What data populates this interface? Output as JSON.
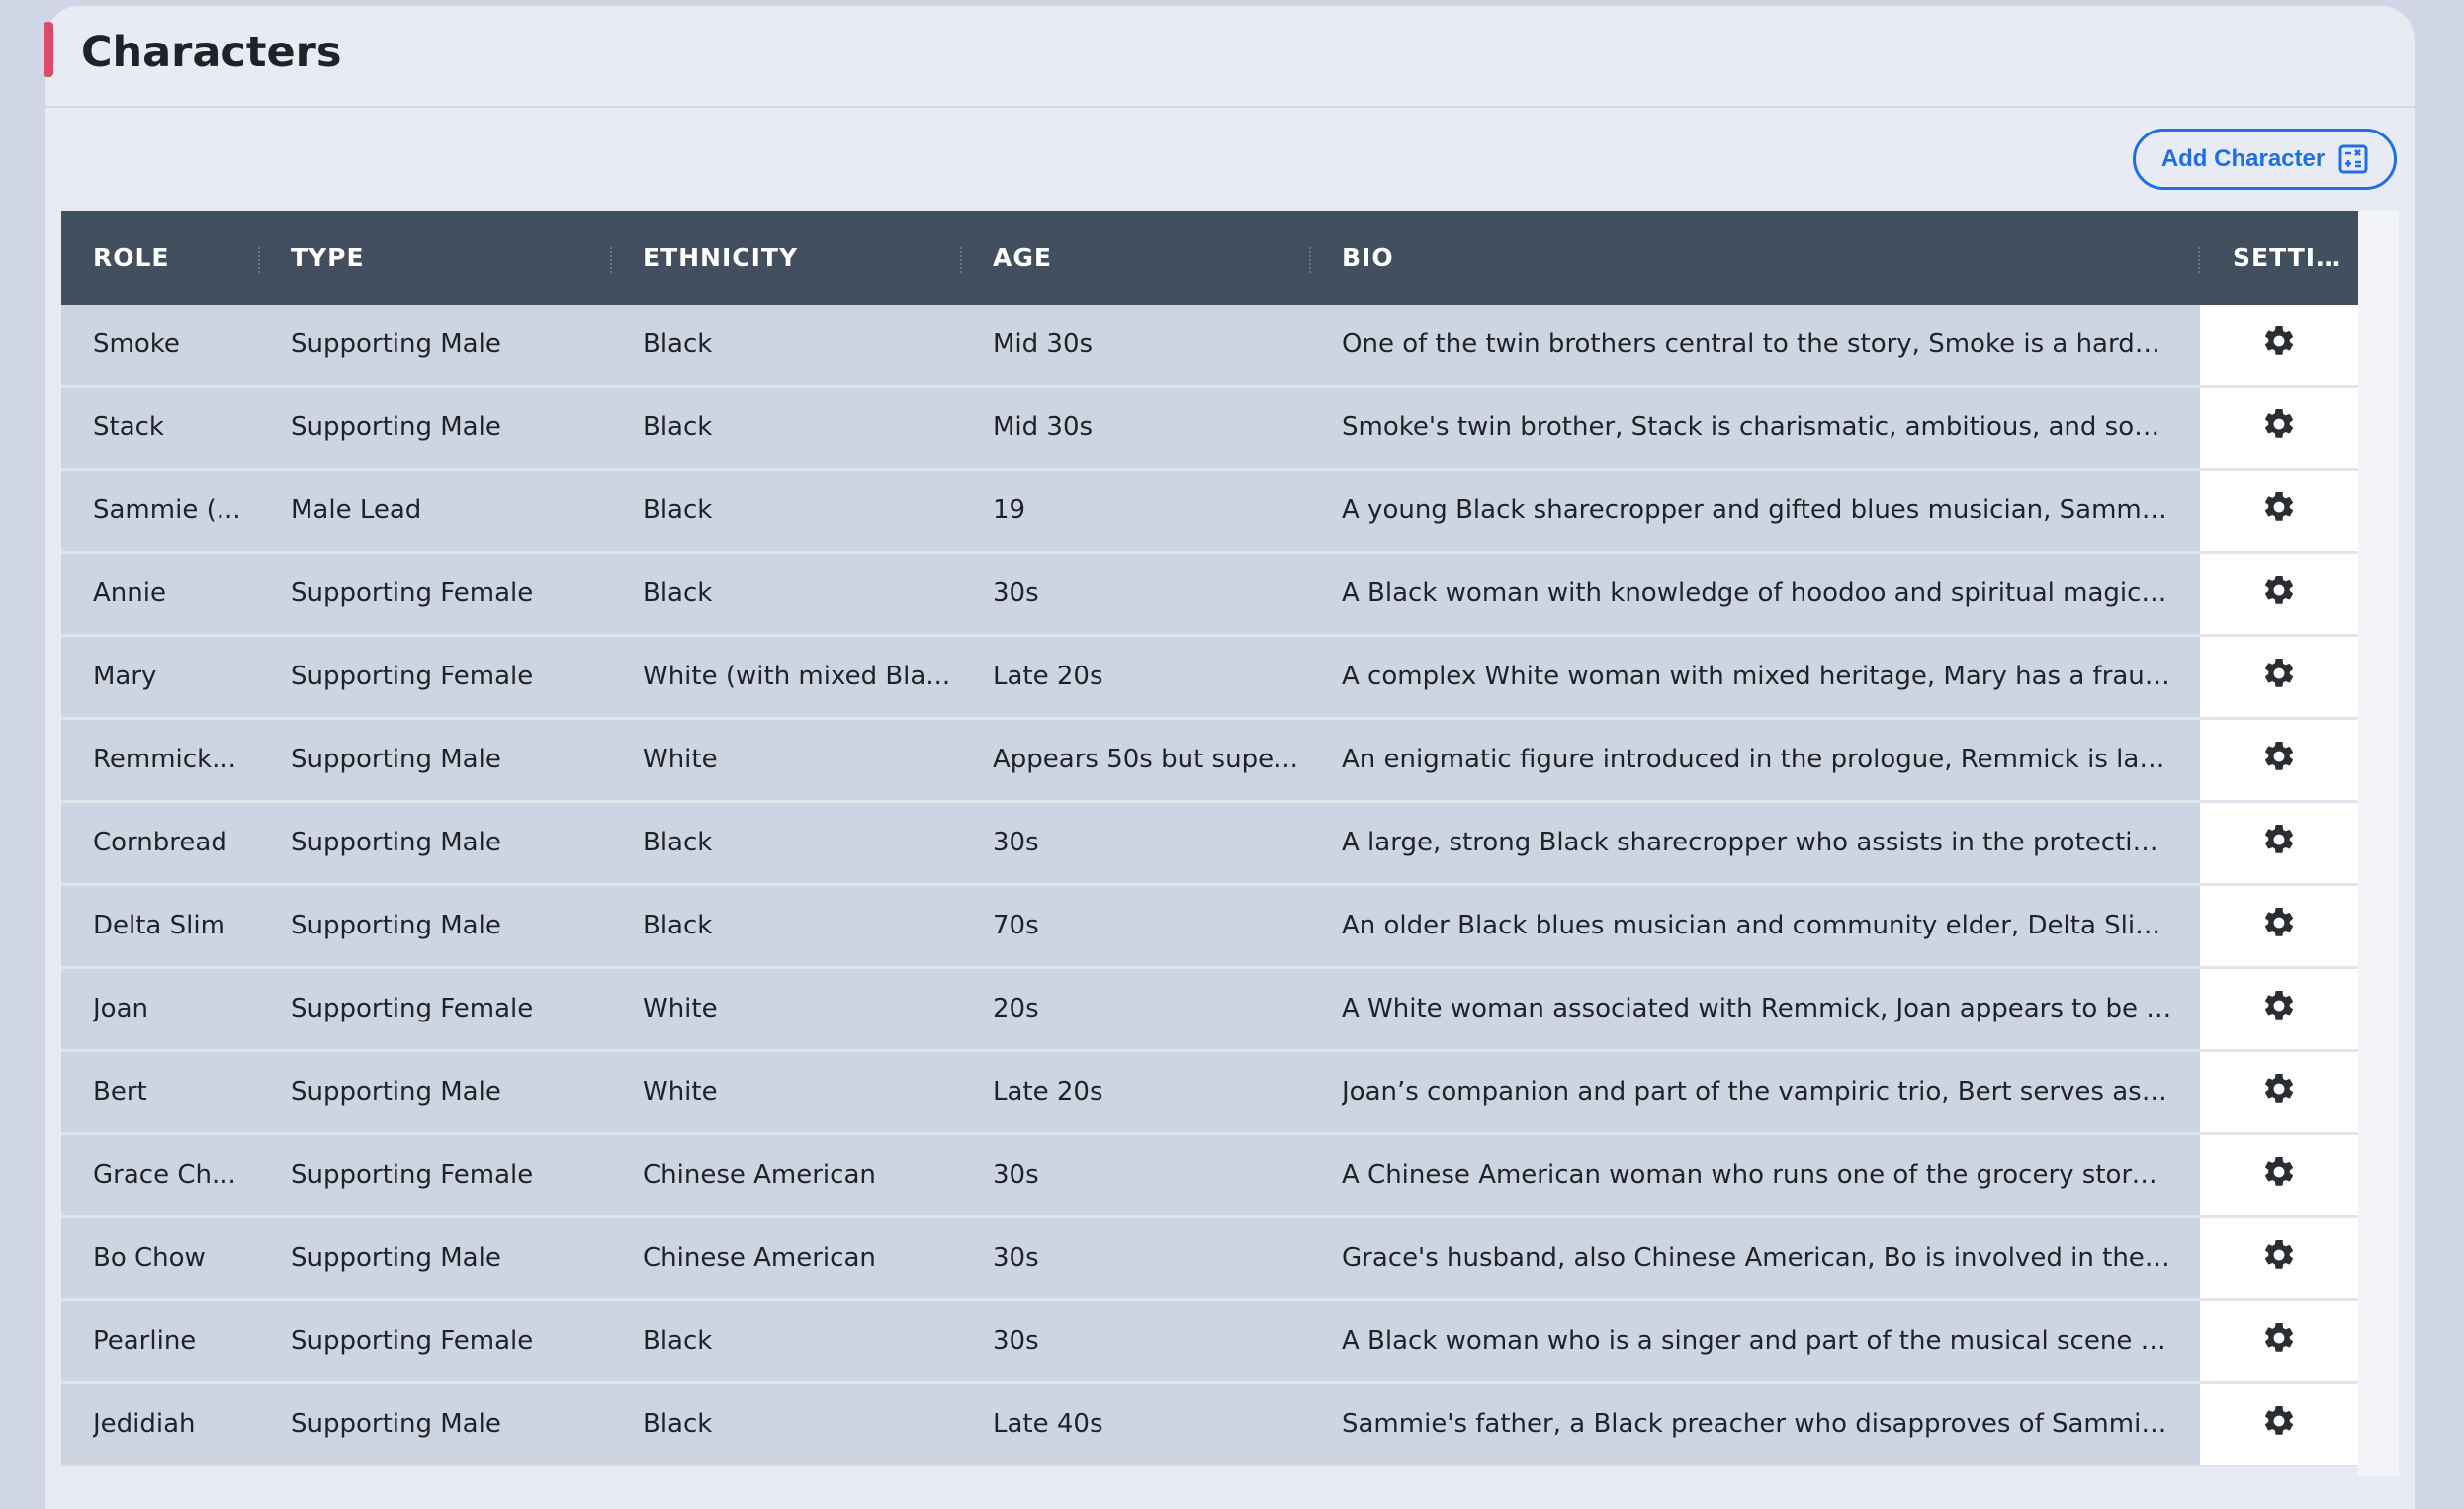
{
  "page": {
    "title": "Characters",
    "add_button": "Add Character",
    "add_icon": "calculator-icon",
    "accent_color": "#dc4a68",
    "button_color": "#1f6fe0"
  },
  "columns": [
    "ROLE",
    "TYPE",
    "ETHNICITY",
    "AGE",
    "BIO",
    "SETTI…"
  ],
  "rows": [
    {
      "role": "Smoke",
      "type": "Supporting Male",
      "ethnicity": "Black",
      "age": "Mid 30s",
      "bio": "One of the twin brothers central to the story, Smoke is a hardened,..."
    },
    {
      "role": "Stack",
      "type": "Supporting Male",
      "ethnicity": "Black",
      "age": "Mid 30s",
      "bio": "Smoke's twin brother, Stack is charismatic, ambitious, and someti..."
    },
    {
      "role": "Sammie (...",
      "type": "Male Lead",
      "ethnicity": "Black",
      "age": "19",
      "bio": "A young Black sharecropper and gifted blues musician, Sammie is ..."
    },
    {
      "role": "Annie",
      "type": "Supporting Female",
      "ethnicity": "Black",
      "age": "30s",
      "bio": "A Black woman with knowledge of hoodoo and spiritual magic, An..."
    },
    {
      "role": "Mary",
      "type": "Supporting Female",
      "ethnicity": "White (with mixed Bla...",
      "age": "Late 20s",
      "bio": "A complex White woman with mixed heritage, Mary has a fraught r..."
    },
    {
      "role": "Remmick...",
      "type": "Supporting Male",
      "ethnicity": "White",
      "age": "Appears 50s but supe...",
      "bio": "An enigmatic figure introduced in the prologue, Remmick is later re..."
    },
    {
      "role": "Cornbread",
      "type": "Supporting Male",
      "ethnicity": "Black",
      "age": "30s",
      "bio": "A large, strong Black sharecropper who assists in the protection of..."
    },
    {
      "role": "Delta Slim",
      "type": "Supporting Male",
      "ethnicity": "Black",
      "age": "70s",
      "bio": "An older Black blues musician and community elder, Delta Slim pro..."
    },
    {
      "role": "Joan",
      "type": "Supporting Female",
      "ethnicity": "White",
      "age": "20s",
      "bio": "A White woman associated with Remmick, Joan appears to be par..."
    },
    {
      "role": "Bert",
      "type": "Supporting Male",
      "ethnicity": "White",
      "age": "Late 20s",
      "bio": "Joan’s companion and part of the vampiric trio, Bert serves as a ..."
    },
    {
      "role": "Grace Ch...",
      "type": "Supporting Female",
      "ethnicity": "Chinese American",
      "age": "30s",
      "bio": "A Chinese American woman who runs one of the grocery stores an..."
    },
    {
      "role": "Bo Chow",
      "type": "Supporting Male",
      "ethnicity": "Chinese American",
      "age": "30s",
      "bio": "Grace's husband, also Chinese American, Bo is involved in the com..."
    },
    {
      "role": "Pearline",
      "type": "Supporting Female",
      "ethnicity": "Black",
      "age": "30s",
      "bio": "A Black woman who is a singer and part of the musical scene arou..."
    },
    {
      "role": "Jedidiah",
      "type": "Supporting Male",
      "ethnicity": "Black",
      "age": "Late 40s",
      "bio": "Sammie's father, a Black preacher who disapproves of Sammie's i..."
    }
  ]
}
